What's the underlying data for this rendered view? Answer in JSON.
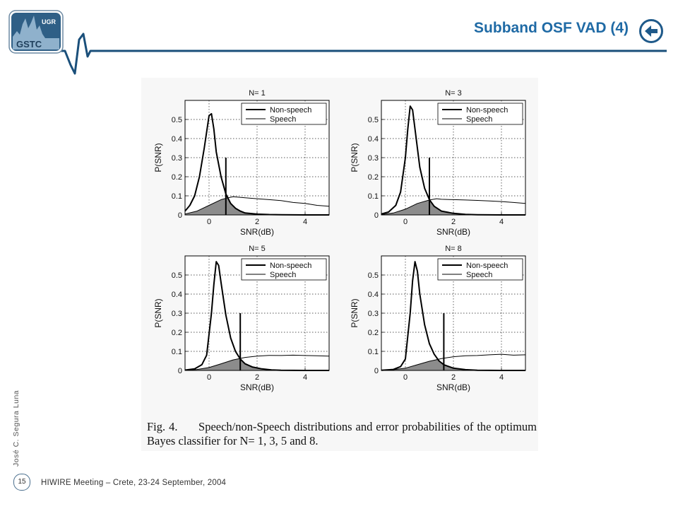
{
  "header": {
    "logo": {
      "name": "GSTC",
      "sub": "UGR"
    },
    "title": "Subband OSF VAD (4)",
    "back_icon": "back-arrow-icon",
    "colors": {
      "title": "#1f6aa5",
      "accent": "#1f5a8a",
      "line": "#1a4f7a"
    }
  },
  "chart_data": [
    {
      "type": "line",
      "title": "N= 1",
      "xlabel": "SNR(dB)",
      "ylabel": "P(SNR)",
      "xlim": [
        -1,
        5
      ],
      "ylim": [
        0,
        0.6
      ],
      "xticks": [
        "0",
        "2",
        "4"
      ],
      "yticks": [
        "0",
        "0.1",
        "0.2",
        "0.3",
        "0.4",
        "0.5"
      ],
      "grid": true,
      "legend_position": "top-right",
      "threshold": 0.7,
      "series": [
        {
          "name": "Non-speech",
          "x": [
            -1,
            -0.8,
            -0.6,
            -0.4,
            -0.2,
            0,
            0.1,
            0.2,
            0.3,
            0.5,
            0.7,
            0.9,
            1.1,
            1.3,
            1.5,
            2,
            2.5,
            3,
            4,
            5
          ],
          "y": [
            0.02,
            0.05,
            0.1,
            0.2,
            0.35,
            0.52,
            0.53,
            0.45,
            0.33,
            0.2,
            0.11,
            0.06,
            0.035,
            0.02,
            0.01,
            0.004,
            0.002,
            0.001,
            0,
            0
          ]
        },
        {
          "name": "Speech",
          "x": [
            -1,
            -0.5,
            0,
            0.5,
            0.8,
            1,
            1.5,
            2,
            2.5,
            3,
            3.5,
            4,
            4.5,
            5
          ],
          "y": [
            0.005,
            0.02,
            0.05,
            0.08,
            0.09,
            0.095,
            0.09,
            0.085,
            0.08,
            0.075,
            0.065,
            0.06,
            0.05,
            0.045
          ]
        }
      ]
    },
    {
      "type": "line",
      "title": "N= 3",
      "xlabel": "SNR(dB)",
      "ylabel": "P(SNR)",
      "xlim": [
        -1,
        5
      ],
      "ylim": [
        0,
        0.6
      ],
      "xticks": [
        "0",
        "2",
        "4"
      ],
      "yticks": [
        "0",
        "0.1",
        "0.2",
        "0.3",
        "0.4",
        "0.5"
      ],
      "grid": true,
      "legend_position": "top-right",
      "threshold": 1.0,
      "series": [
        {
          "name": "Non-speech",
          "x": [
            -1,
            -0.7,
            -0.4,
            -0.2,
            0,
            0.1,
            0.2,
            0.3,
            0.4,
            0.6,
            0.8,
            1,
            1.2,
            1.5,
            2,
            2.5,
            3,
            4,
            5
          ],
          "y": [
            0.005,
            0.015,
            0.05,
            0.12,
            0.3,
            0.45,
            0.57,
            0.55,
            0.45,
            0.25,
            0.14,
            0.08,
            0.045,
            0.02,
            0.008,
            0.003,
            0.001,
            0,
            0
          ]
        },
        {
          "name": "Speech",
          "x": [
            -1,
            -0.5,
            0,
            0.5,
            1,
            1.3,
            1.5,
            2,
            2.5,
            3,
            3.5,
            4,
            4.5,
            5
          ],
          "y": [
            0.002,
            0.01,
            0.03,
            0.06,
            0.078,
            0.085,
            0.082,
            0.08,
            0.078,
            0.076,
            0.073,
            0.07,
            0.065,
            0.06
          ]
        }
      ]
    },
    {
      "type": "line",
      "title": "N= 5",
      "xlabel": "SNR(dB)",
      "ylabel": "P(SNR)",
      "xlim": [
        -1,
        5
      ],
      "ylim": [
        0,
        0.6
      ],
      "xticks": [
        "0",
        "2",
        "4"
      ],
      "yticks": [
        "0",
        "0.1",
        "0.2",
        "0.3",
        "0.4",
        "0.5"
      ],
      "grid": true,
      "legend_position": "top-right",
      "threshold": 1.3,
      "series": [
        {
          "name": "Non-speech",
          "x": [
            -1,
            -0.6,
            -0.3,
            -0.1,
            0.1,
            0.2,
            0.3,
            0.4,
            0.5,
            0.7,
            0.9,
            1.1,
            1.3,
            1.5,
            1.8,
            2.2,
            2.6,
            3,
            4,
            5
          ],
          "y": [
            0.002,
            0.008,
            0.03,
            0.08,
            0.3,
            0.45,
            0.57,
            0.55,
            0.46,
            0.29,
            0.17,
            0.1,
            0.06,
            0.035,
            0.018,
            0.008,
            0.003,
            0.001,
            0,
            0
          ]
        },
        {
          "name": "Speech",
          "x": [
            -1,
            -0.5,
            0,
            0.5,
            1,
            1.5,
            2,
            2.5,
            3,
            3.5,
            4,
            4.5,
            5
          ],
          "y": [
            0.001,
            0.005,
            0.015,
            0.035,
            0.055,
            0.068,
            0.075,
            0.079,
            0.078,
            0.08,
            0.078,
            0.077,
            0.075
          ]
        }
      ]
    },
    {
      "type": "line",
      "title": "N= 8",
      "xlabel": "SNR(dB)",
      "ylabel": "P(SNR)",
      "xlim": [
        -1,
        5
      ],
      "ylim": [
        0,
        0.6
      ],
      "xticks": [
        "0",
        "2",
        "4"
      ],
      "yticks": [
        "0",
        "0.1",
        "0.2",
        "0.3",
        "0.4",
        "0.5"
      ],
      "grid": true,
      "legend_position": "top-right",
      "threshold": 1.6,
      "series": [
        {
          "name": "Non-speech",
          "x": [
            -1,
            -0.5,
            -0.2,
            0,
            0.2,
            0.3,
            0.4,
            0.5,
            0.6,
            0.8,
            1,
            1.2,
            1.4,
            1.6,
            2,
            2.5,
            3,
            4,
            5
          ],
          "y": [
            0.001,
            0.005,
            0.02,
            0.06,
            0.3,
            0.47,
            0.57,
            0.52,
            0.4,
            0.24,
            0.14,
            0.085,
            0.05,
            0.03,
            0.012,
            0.004,
            0.001,
            0,
            0
          ]
        },
        {
          "name": "Speech",
          "x": [
            -1,
            -0.5,
            0,
            0.5,
            1,
            1.5,
            2,
            2.5,
            3,
            3.5,
            4,
            4.5,
            5
          ],
          "y": [
            0.001,
            0.004,
            0.012,
            0.03,
            0.048,
            0.062,
            0.072,
            0.077,
            0.078,
            0.082,
            0.085,
            0.08,
            0.082
          ]
        }
      ]
    }
  ],
  "caption": {
    "label": "Fig. 4.",
    "text": "Speech/non-Speech distributions and error probabilities of the optimum Bayes classifier for N= 1, 3, 5 and 8."
  },
  "footer": {
    "author": "José C. Segura Luna",
    "page": "15",
    "event": "HIWIRE Meeting – Crete, 23-24 September, 2004"
  }
}
